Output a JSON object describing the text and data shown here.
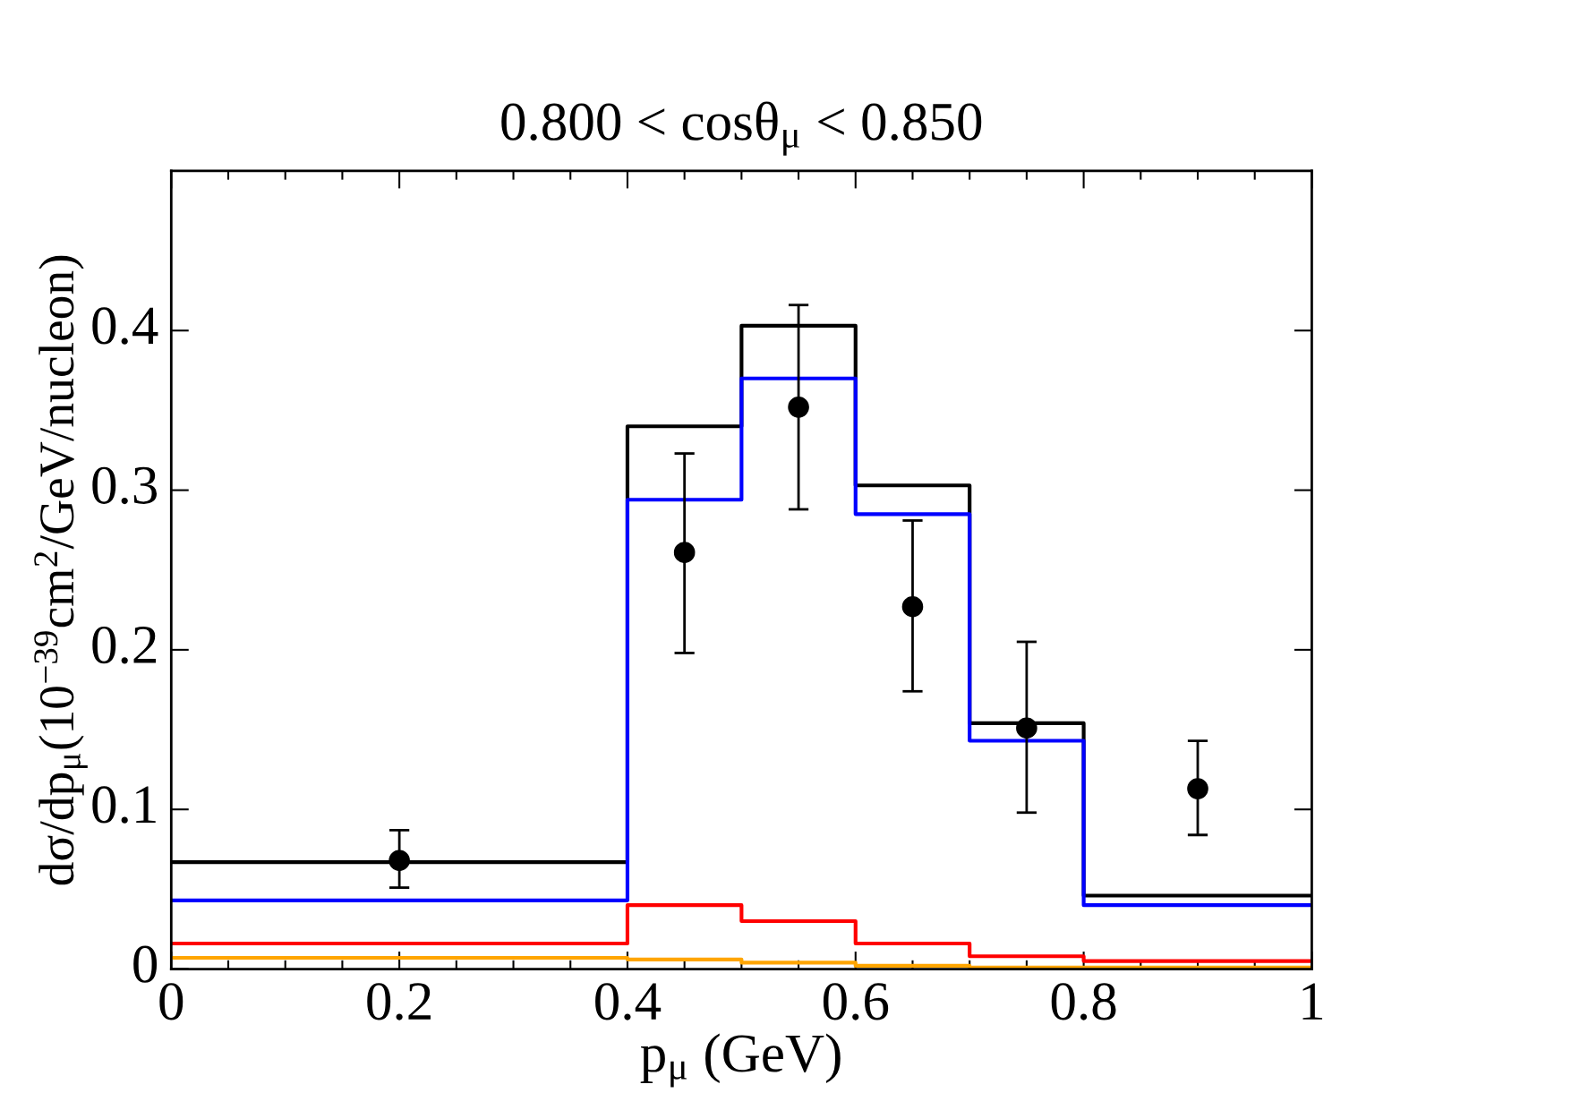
{
  "chart_data": {
    "type": "step",
    "title": "0.800 < cosθ$_{μ}$ < 0.850",
    "xlabel": "p$_{μ}$ (GeV)",
    "ylabel": "dσ/dp$_{μ}$(10$^{−39}$cm$^{2}$/GeV/nucleon)",
    "x": [
      0,
      0.4,
      0.5,
      0.6,
      0.7,
      0.8,
      1.0
    ],
    "series": [
      {
        "color": "#000000",
        "values": [
          0.067,
          0.34,
          0.403,
          0.303,
          0.154,
          0.046,
          0.046
        ]
      },
      {
        "color": "#0000ff",
        "values": [
          0.043,
          0.294,
          0.37,
          0.285,
          0.143,
          0.04,
          0.04
        ]
      },
      {
        "color": "#ff0000",
        "values": [
          0.016,
          0.04,
          0.03,
          0.016,
          0.008,
          0.005,
          0.005
        ]
      },
      {
        "color": "#ffa500",
        "values": [
          0.007,
          0.006,
          0.004,
          0.002,
          0.001,
          0.001,
          0.001
        ]
      },
      {
        "type": "scatter",
        "color": "#000000",
        "marker": "circle",
        "x": [
          0.2,
          0.45,
          0.55,
          0.65,
          0.75,
          0.9
        ],
        "values": [
          0.068,
          0.261,
          0.352,
          0.227,
          0.151,
          0.113
        ],
        "errors": [
          [
            0.051,
            0.087
          ],
          [
            0.198,
            0.323
          ],
          [
            0.288,
            0.416
          ],
          [
            0.174,
            0.281
          ],
          [
            0.098,
            0.205
          ],
          [
            0.084,
            0.143
          ]
        ]
      }
    ],
    "xlim": [
      0,
      1
    ],
    "xticks": [
      0,
      0.2,
      0.4,
      0.6,
      0.8,
      1
    ],
    "ylim": [
      0,
      0.5
    ],
    "yticks": [
      0,
      0.1,
      0.2,
      0.3,
      0.4
    ],
    "grid": false,
    "legend": false
  }
}
